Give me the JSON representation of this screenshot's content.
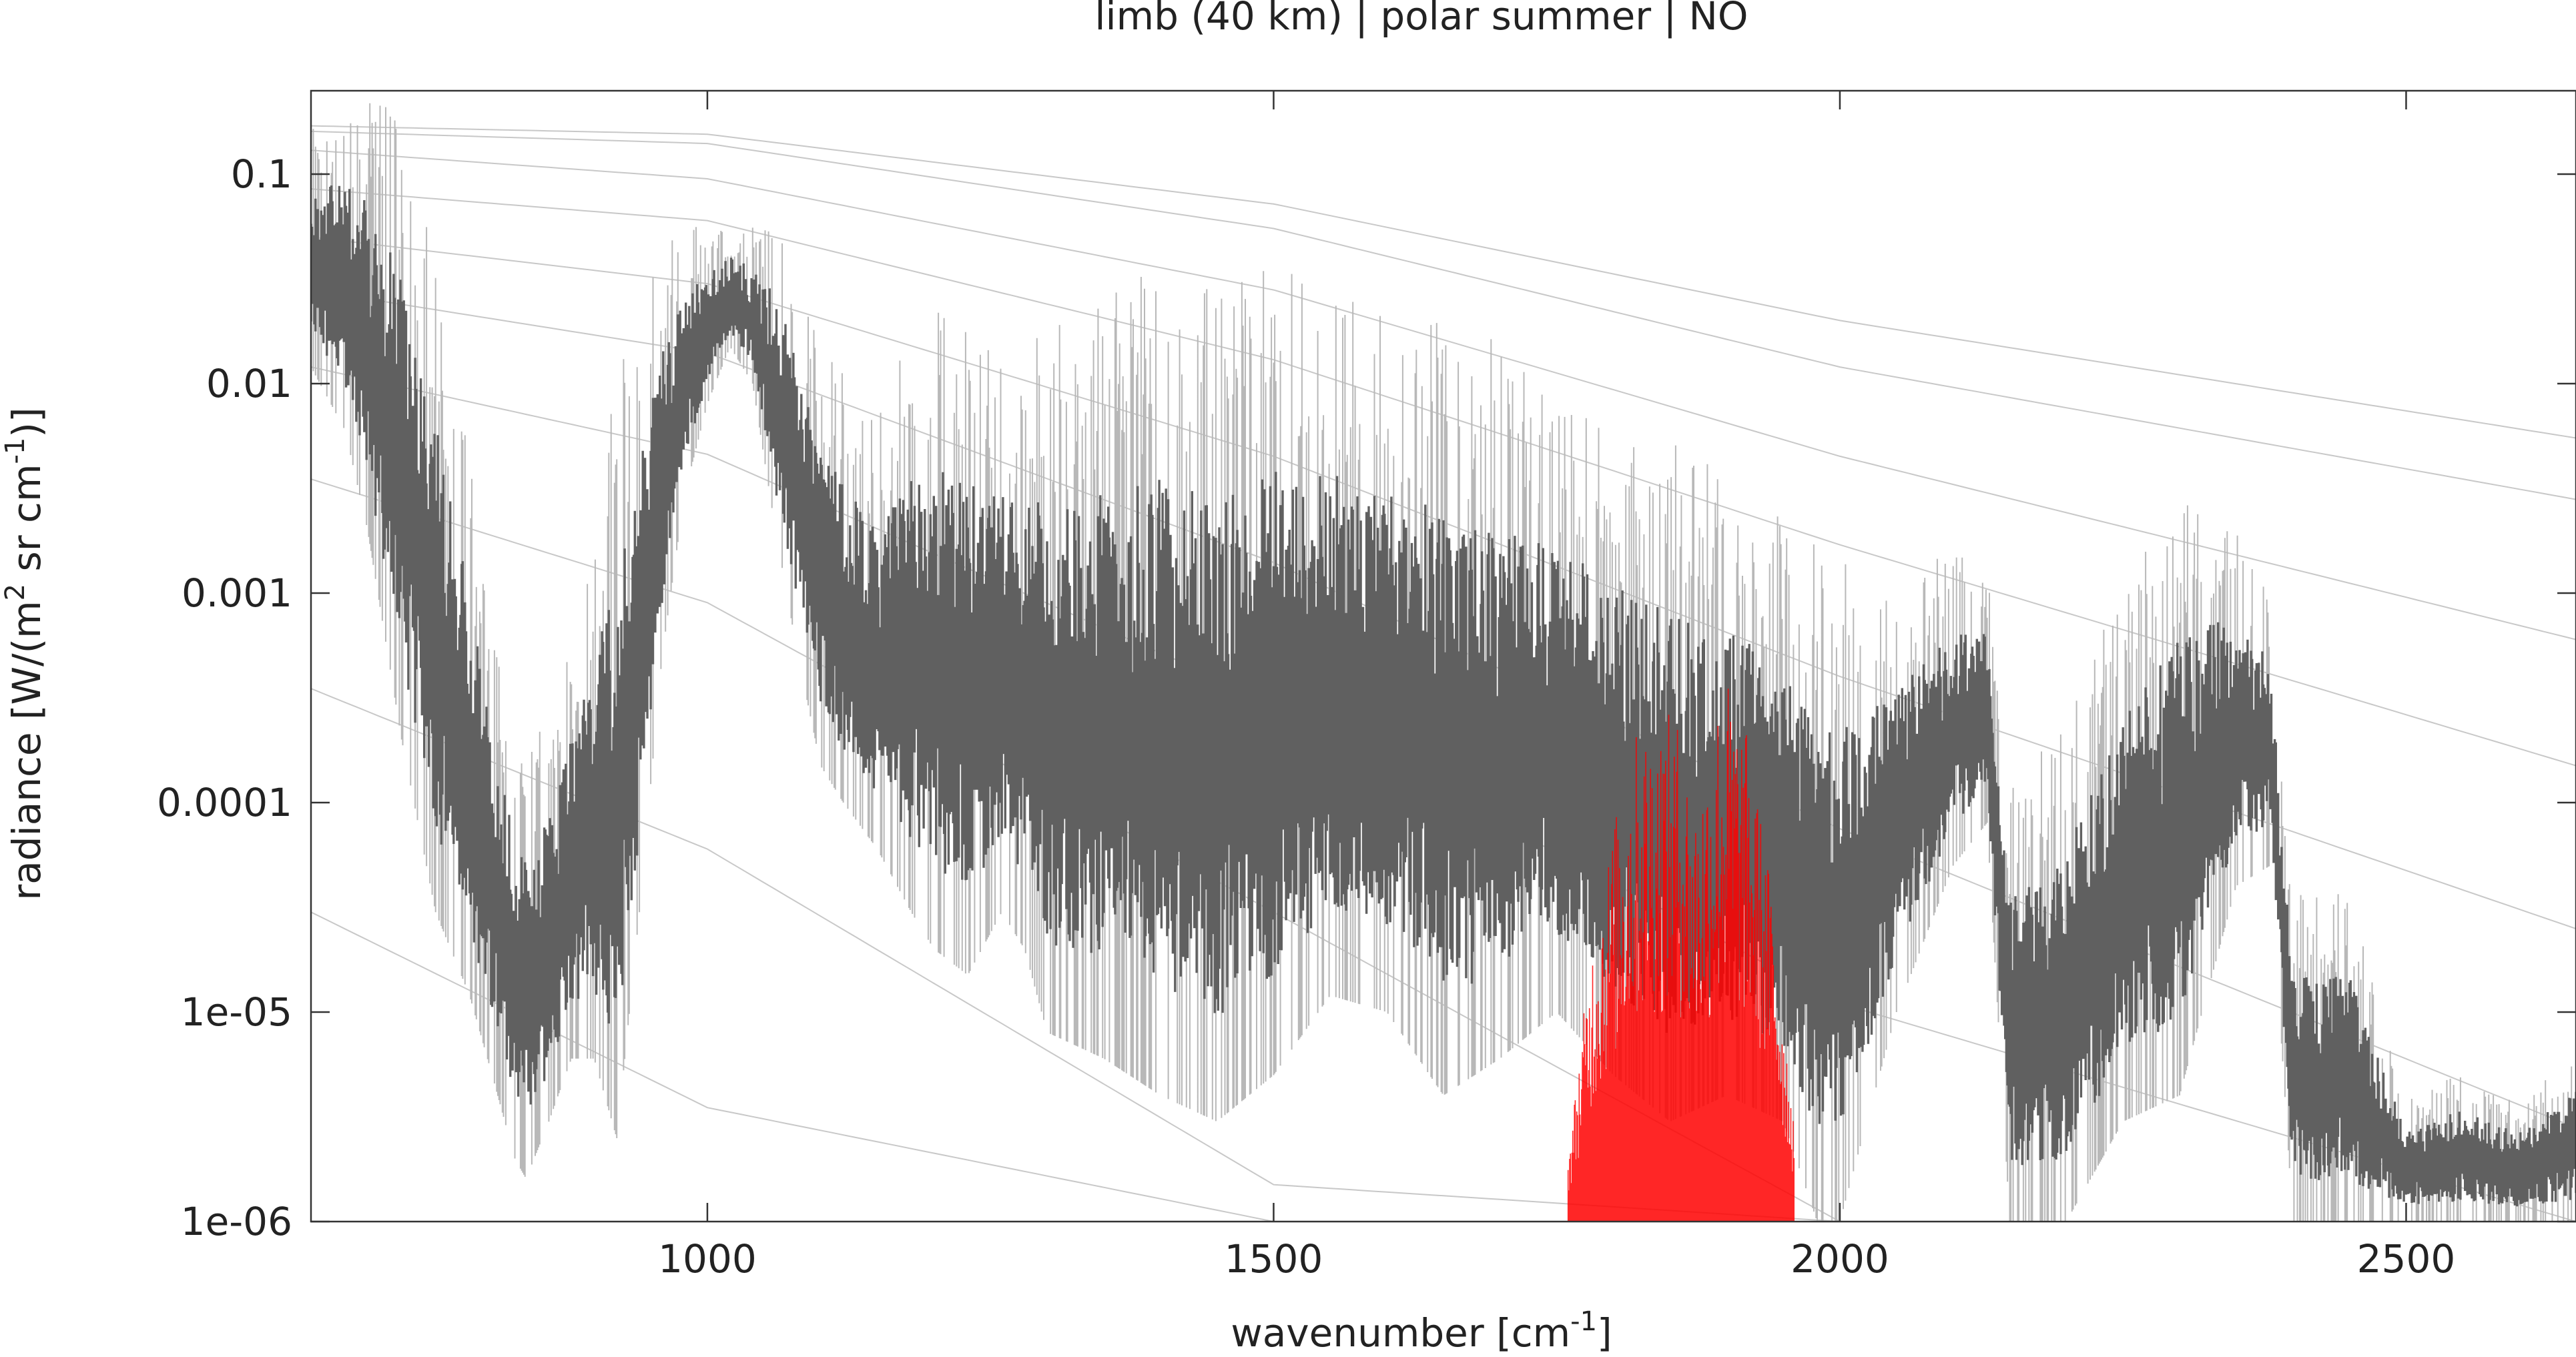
{
  "chart_data": {
    "type": "line",
    "title": "limb (40 km) | polar summer | NO",
    "xlabel": {
      "main": "wavenumber [cm",
      "sup": "-1",
      "tail": "]"
    },
    "ylabel": {
      "p1": "radiance [W/(m",
      "s1": "2",
      "p2": " sr cm",
      "s2": "-1",
      "p3": ")]"
    },
    "xlim": [
      650,
      2650
    ],
    "ylim": [
      1e-06,
      0.25
    ],
    "yscale": "log",
    "xticks": [
      {
        "value": 1000,
        "label": "1000"
      },
      {
        "value": 1500,
        "label": "1500"
      },
      {
        "value": 2000,
        "label": "2000"
      },
      {
        "value": 2500,
        "label": "2500"
      }
    ],
    "yticks": [
      {
        "value": 0.1,
        "label": "0.1"
      },
      {
        "value": 0.01,
        "label": "0.01"
      },
      {
        "value": 0.001,
        "label": "0.001"
      },
      {
        "value": 0.0001,
        "label": "0.0001"
      },
      {
        "value": 1e-05,
        "label": "1e-05"
      },
      {
        "value": 1e-06,
        "label": "1e-06"
      }
    ],
    "grid": false,
    "colors": {
      "total": "#606060",
      "total_light": "#b8b8b8",
      "no": "#ff0000",
      "planck": "#c8c8c8"
    },
    "series": [
      {
        "role": "planck_reference_curves",
        "x": [
          650,
          1000,
          1500,
          2000,
          2650
        ],
        "curves": [
          [
            0.17,
            0.155,
            0.072,
            0.02,
            0.0055
          ],
          [
            0.16,
            0.14,
            0.055,
            0.012,
            0.0028
          ],
          [
            0.13,
            0.095,
            0.028,
            0.0045,
            0.0006
          ],
          [
            0.085,
            0.06,
            0.013,
            0.0017,
            0.00015
          ],
          [
            0.05,
            0.03,
            0.0045,
            0.0004,
            2.5e-05
          ],
          [
            0.028,
            0.014,
            0.0014,
            7.5e-05,
            2.8e-06
          ],
          [
            0.012,
            0.0046,
            0.0003,
            1.1e-05,
            1e-06
          ],
          [
            0.0035,
            0.0009,
            3e-05,
            1e-06,
            1e-06
          ],
          [
            0.00035,
            6e-05,
            1.5e-06,
            1e-06,
            1e-06
          ],
          [
            3e-05,
            3.5e-06,
            1e-06,
            1e-06,
            1e-06
          ]
        ]
      },
      {
        "role": "total_radiance_envelope",
        "x": [
          650,
          680,
          700,
          730,
          760,
          790,
          810,
          830,
          840,
          860,
          880,
          900,
          920,
          940,
          960,
          980,
          1000,
          1020,
          1040,
          1060,
          1080,
          1100,
          1120,
          1150,
          1180,
          1200,
          1230,
          1260,
          1280,
          1300,
          1350,
          1400,
          1450,
          1500,
          1550,
          1600,
          1650,
          1700,
          1750,
          1800,
          1850,
          1900,
          1950,
          1980,
          2000,
          2050,
          2100,
          2130,
          2150,
          2200,
          2250,
          2300,
          2350,
          2380,
          2400,
          2450,
          2500,
          2550,
          2600,
          2650
        ],
        "upper": [
          0.11,
          0.12,
          0.11,
          0.06,
          0.012,
          0.0016,
          0.0003,
          0.0001,
          8e-05,
          0.00012,
          0.0003,
          0.0008,
          0.0025,
          0.008,
          0.02,
          0.035,
          0.04,
          0.045,
          0.042,
          0.035,
          0.02,
          0.008,
          0.005,
          0.003,
          0.006,
          0.008,
          0.006,
          0.005,
          0.005,
          0.005,
          0.006,
          0.008,
          0.006,
          0.008,
          0.007,
          0.006,
          0.005,
          0.004,
          0.003,
          0.002,
          0.0015,
          0.0012,
          0.0008,
          0.0005,
          0.0004,
          0.0005,
          0.0009,
          0.0008,
          5e-05,
          0.0001,
          0.0004,
          0.0011,
          0.0011,
          0.0006,
          2e-05,
          2e-05,
          3e-06,
          4e-06,
          3e-06,
          5e-06
        ],
        "lower": [
          0.012,
          0.006,
          0.002,
          0.0002,
          3e-05,
          1.2e-05,
          5e-06,
          2e-06,
          1.6e-06,
          3e-06,
          6e-06,
          6e-06,
          2.5e-06,
          3e-05,
          0.0005,
          0.003,
          0.008,
          0.015,
          0.01,
          0.002,
          0.0005,
          0.00015,
          0.0001,
          6e-05,
          3e-05,
          2e-05,
          1.5e-05,
          3e-05,
          2e-05,
          8e-06,
          6e-06,
          4e-06,
          3e-06,
          5e-06,
          1.2e-05,
          1e-05,
          4e-06,
          6e-06,
          1e-05,
          5e-06,
          3e-06,
          4e-06,
          3e-06,
          1e-06,
          1e-06,
          1e-05,
          5e-05,
          8e-05,
          1e-06,
          1e-06,
          3e-06,
          4e-06,
          4e-05,
          5e-05,
          1e-06,
          1e-06,
          1e-06,
          1e-06,
          1e-06,
          1e-06
        ]
      },
      {
        "role": "no_band_radiance",
        "color": "red",
        "x": [
          1760,
          1780,
          1800,
          1820,
          1840,
          1860,
          1870,
          1880,
          1890,
          1900,
          1920,
          1940,
          1960
        ],
        "upper": [
          2e-06,
          2e-05,
          8e-05,
          0.00022,
          0.00028,
          0.00025,
          0.0001,
          0.00015,
          0.0003,
          0.00042,
          0.0002,
          4e-05,
          3e-06
        ],
        "lower": [
          1e-06,
          1e-06,
          1e-06,
          1e-06,
          1e-06,
          1e-06,
          1e-06,
          1e-06,
          1e-06,
          1e-06,
          1e-06,
          1e-06,
          1e-06
        ]
      }
    ]
  }
}
